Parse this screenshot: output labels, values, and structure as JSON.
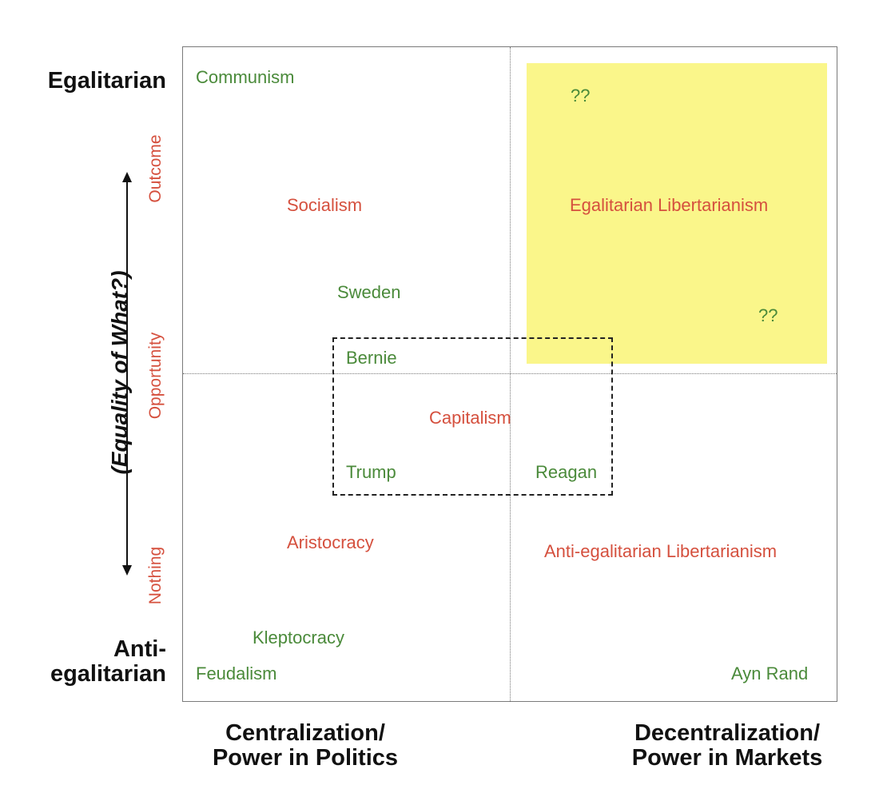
{
  "y_axis": {
    "top_label": "Egalitarian",
    "bottom_label": "Anti-\negalitarian",
    "title": "(Equality of What?)",
    "ticks": [
      "Outcome",
      "Opportunity",
      "Nothing"
    ]
  },
  "x_axis": {
    "left_label": "Centralization/\nPower in Politics",
    "right_label": "Decentralization/\nPower in Markets"
  },
  "items": {
    "communism": "Communism",
    "socialism": "Socialism",
    "sweden": "Sweden",
    "bernie": "Bernie",
    "capitalism": "Capitalism",
    "trump": "Trump",
    "reagan": "Reagan",
    "aristocracy": "Aristocracy",
    "kleptocracy": "Kleptocracy",
    "feudalism": "Feudalism",
    "unknown_1": "??",
    "unknown_2": "??",
    "egalitarian_libertarianism": "Egalitarian Libertarianism",
    "anti_egalitarian_libertarianism": "Anti-egalitarian Libertarianism",
    "ayn_rand": "Ayn Rand"
  },
  "colors": {
    "green_label": "#4a8a3a",
    "red_label": "#d5503e",
    "highlight": "#faf68a"
  }
}
